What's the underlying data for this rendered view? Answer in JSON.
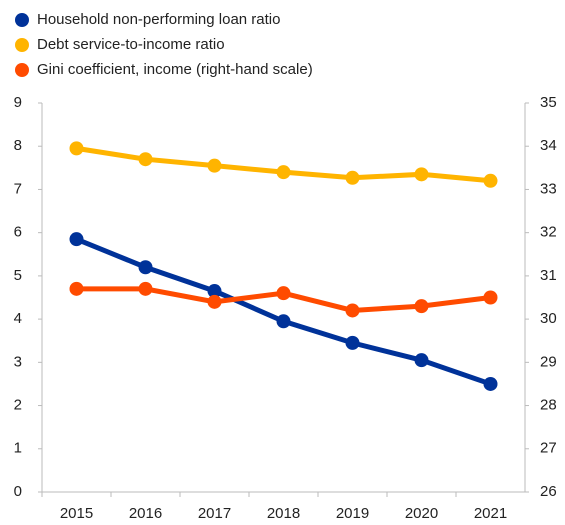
{
  "chart_data": {
    "type": "line",
    "categories": [
      "2015",
      "2016",
      "2017",
      "2018",
      "2019",
      "2020",
      "2021"
    ],
    "series": [
      {
        "name": "Household non-performing loan ratio",
        "color": "#003299",
        "values": [
          5.85,
          5.2,
          4.65,
          3.95,
          3.45,
          3.05,
          2.5
        ]
      },
      {
        "name": "Debt service-to-income ratio",
        "color": "#ffb400",
        "values": [
          7.95,
          7.7,
          7.55,
          7.4,
          7.27,
          7.35,
          7.2
        ]
      },
      {
        "name": "Gini coefficient, income (right-hand scale)",
        "color": "#ff4b00",
        "axis": "y2",
        "values": [
          30.7,
          30.7,
          30.4,
          30.6,
          30.2,
          30.3,
          30.5
        ]
      }
    ],
    "ylim": [
      0,
      9
    ],
    "yticks": [
      0,
      1,
      2,
      3,
      4,
      5,
      6,
      7,
      8,
      9
    ],
    "y2lim": [
      26,
      35
    ],
    "y2ticks": [
      26,
      27,
      28,
      29,
      30,
      31,
      32,
      33,
      34,
      35
    ],
    "legend": "top-left",
    "grid": false
  }
}
